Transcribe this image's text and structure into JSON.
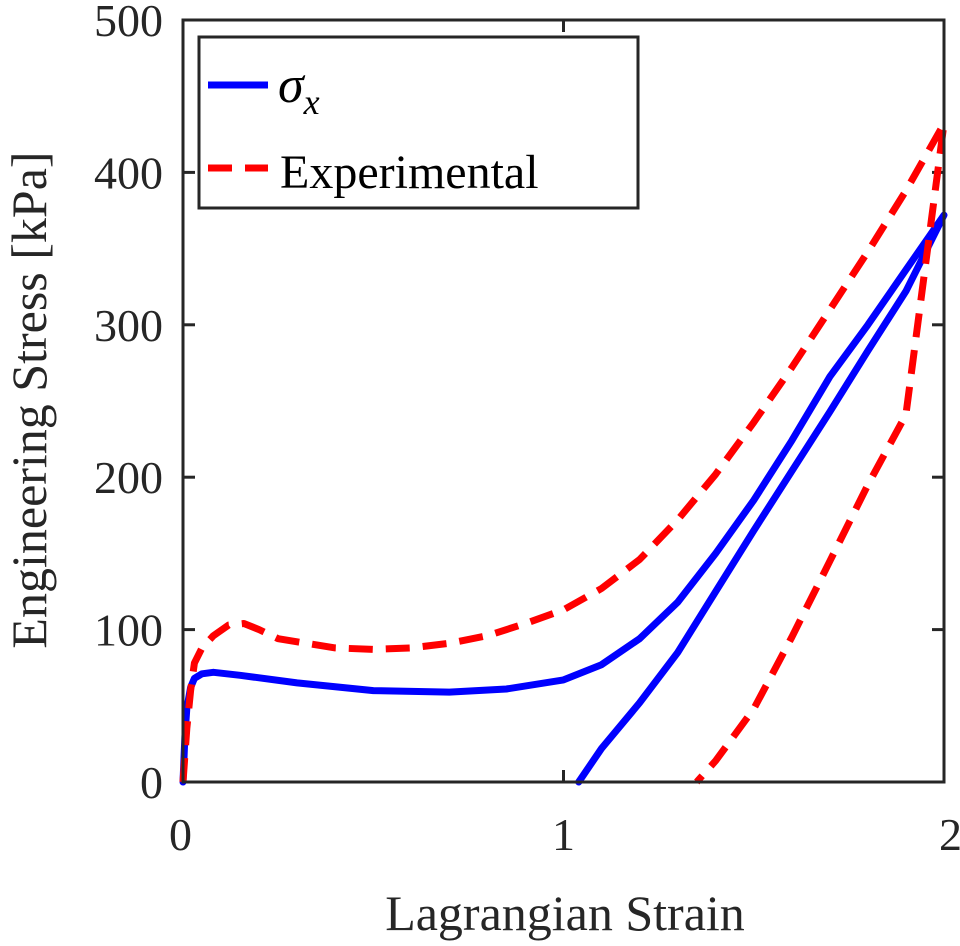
{
  "chart_data": {
    "type": "line",
    "title": "",
    "xlabel": "Lagrangian Strain",
    "ylabel": "Engineering Stress [kPa]",
    "xlim": [
      0,
      2
    ],
    "ylim": [
      0,
      500
    ],
    "xticks": [
      0,
      1,
      2
    ],
    "yticks": [
      0,
      100,
      200,
      300,
      400,
      500
    ],
    "x_tick_labels": [
      "0",
      "1",
      "2"
    ],
    "y_tick_labels": [
      "0",
      "100",
      "200",
      "300",
      "400",
      "500"
    ],
    "grid": false,
    "legend_position": "top-left",
    "series": [
      {
        "name": "σ",
        "name_subscript": "x",
        "color": "#0000ff",
        "style": "solid",
        "points": [
          [
            0,
            0
          ],
          [
            0.005,
            30
          ],
          [
            0.01,
            48
          ],
          [
            0.02,
            62
          ],
          [
            0.03,
            68
          ],
          [
            0.05,
            71
          ],
          [
            0.08,
            72
          ],
          [
            0.15,
            70
          ],
          [
            0.3,
            65
          ],
          [
            0.5,
            60
          ],
          [
            0.7,
            59
          ],
          [
            0.85,
            61
          ],
          [
            1.0,
            67
          ],
          [
            1.1,
            77
          ],
          [
            1.2,
            94
          ],
          [
            1.3,
            118
          ],
          [
            1.4,
            150
          ],
          [
            1.5,
            185
          ],
          [
            1.6,
            224
          ],
          [
            1.7,
            266
          ],
          [
            1.8,
            300
          ],
          [
            1.9,
            336
          ],
          [
            2.0,
            372
          ],
          [
            1.9,
            322
          ],
          [
            1.8,
            283
          ],
          [
            1.7,
            243
          ],
          [
            1.6,
            204
          ],
          [
            1.5,
            165
          ],
          [
            1.4,
            125
          ],
          [
            1.3,
            85
          ],
          [
            1.2,
            52
          ],
          [
            1.1,
            22
          ],
          [
            1.04,
            0
          ]
        ]
      },
      {
        "name": "Experimental",
        "color": "#ff0000",
        "style": "dashed",
        "points": [
          [
            0,
            0
          ],
          [
            0.01,
            35
          ],
          [
            0.02,
            60
          ],
          [
            0.03,
            78
          ],
          [
            0.05,
            88
          ],
          [
            0.08,
            96
          ],
          [
            0.12,
            103
          ],
          [
            0.16,
            104
          ],
          [
            0.2,
            100
          ],
          [
            0.25,
            94
          ],
          [
            0.3,
            92
          ],
          [
            0.4,
            88
          ],
          [
            0.5,
            87
          ],
          [
            0.6,
            88
          ],
          [
            0.7,
            91
          ],
          [
            0.8,
            96
          ],
          [
            0.9,
            104
          ],
          [
            1.0,
            113
          ],
          [
            1.1,
            127
          ],
          [
            1.2,
            146
          ],
          [
            1.3,
            172
          ],
          [
            1.4,
            202
          ],
          [
            1.5,
            236
          ],
          [
            1.6,
            272
          ],
          [
            1.7,
            310
          ],
          [
            1.8,
            348
          ],
          [
            1.9,
            388
          ],
          [
            2.0,
            432
          ],
          [
            1.9,
            241
          ],
          [
            1.8,
            195
          ],
          [
            1.7,
            145
          ],
          [
            1.6,
            95
          ],
          [
            1.5,
            48
          ],
          [
            1.4,
            14
          ],
          [
            1.35,
            0
          ]
        ]
      }
    ]
  }
}
